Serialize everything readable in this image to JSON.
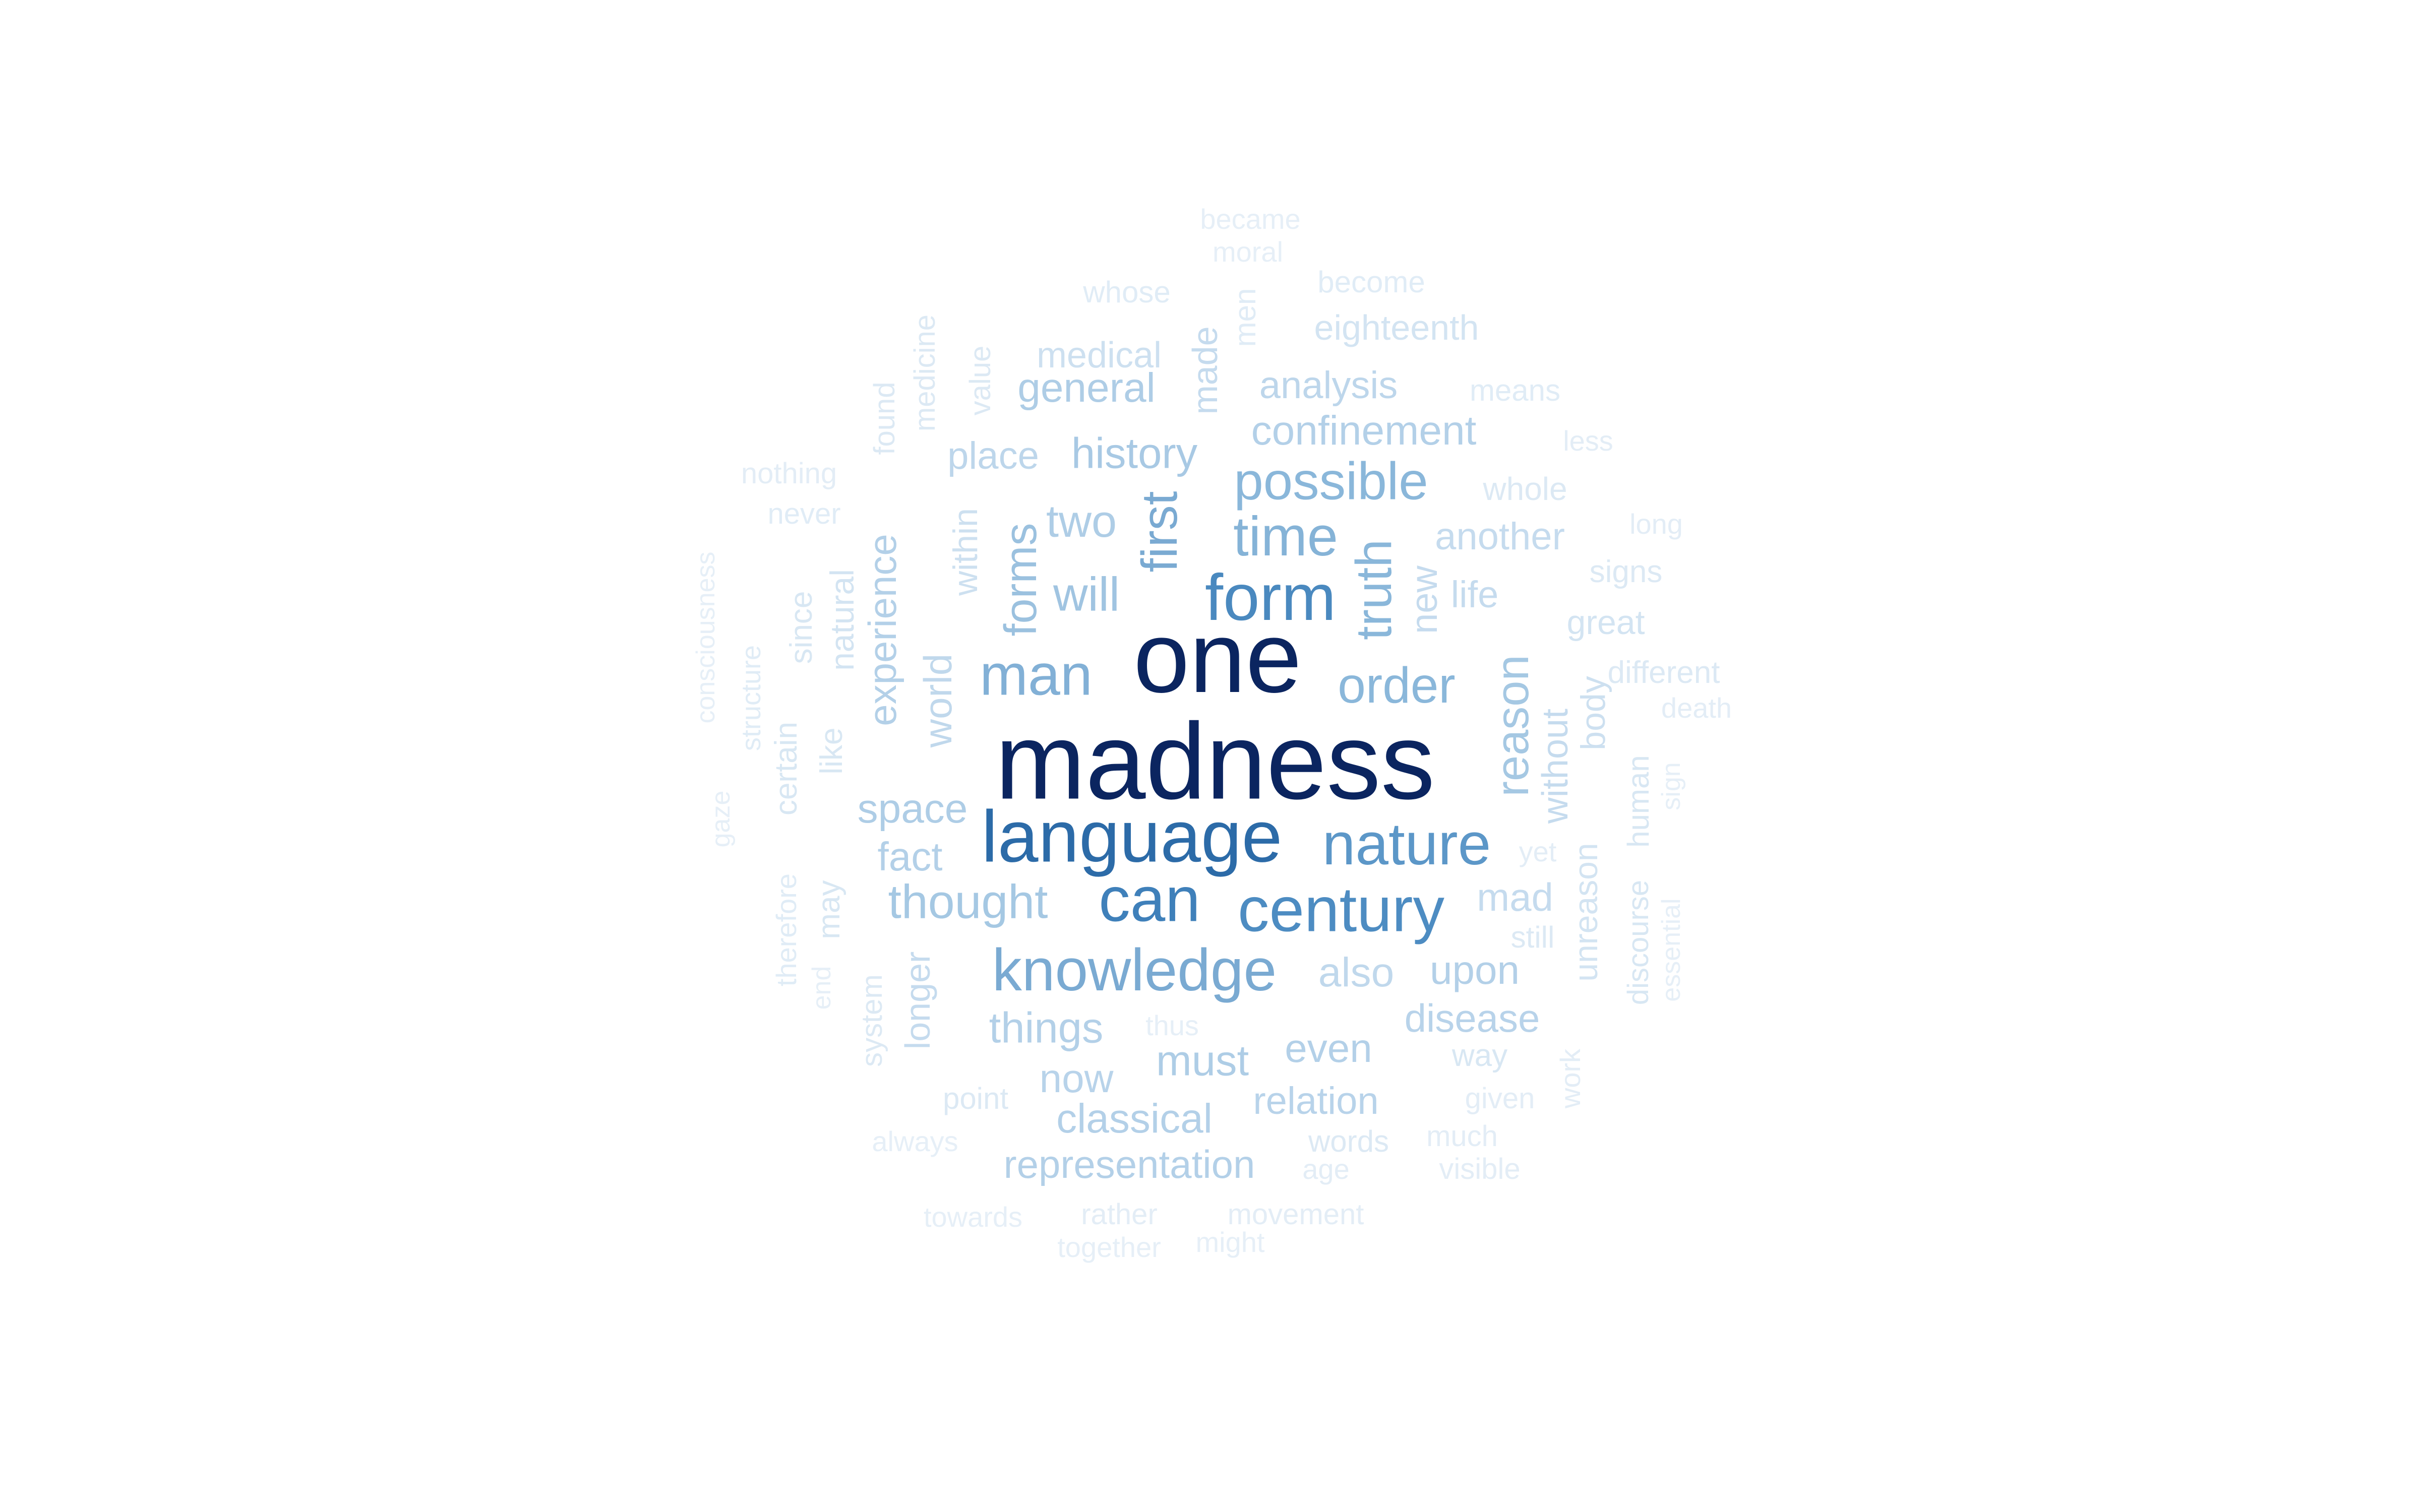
{
  "chart_data": {
    "type": "wordcloud",
    "palette": "blues",
    "background": "#ffffff",
    "words": [
      {
        "text": "madness",
        "weight": 100,
        "orientation": "horizontal"
      },
      {
        "text": "one",
        "weight": 100,
        "orientation": "horizontal"
      },
      {
        "text": "language",
        "weight": 80,
        "orientation": "horizontal"
      },
      {
        "text": "form",
        "weight": 72,
        "orientation": "horizontal"
      },
      {
        "text": "can",
        "weight": 72,
        "orientation": "horizontal"
      },
      {
        "text": "century",
        "weight": 70,
        "orientation": "horizontal"
      },
      {
        "text": "nature",
        "weight": 68,
        "orientation": "horizontal"
      },
      {
        "text": "knowledge",
        "weight": 62,
        "orientation": "horizontal"
      },
      {
        "text": "man",
        "weight": 62,
        "orientation": "horizontal"
      },
      {
        "text": "time",
        "weight": 60,
        "orientation": "horizontal"
      },
      {
        "text": "possible",
        "weight": 58,
        "orientation": "horizontal"
      },
      {
        "text": "order",
        "weight": 58,
        "orientation": "horizontal"
      },
      {
        "text": "truth",
        "weight": 56,
        "orientation": "vertical"
      },
      {
        "text": "first",
        "weight": 56,
        "orientation": "vertical"
      },
      {
        "text": "forms",
        "weight": 54,
        "orientation": "vertical"
      },
      {
        "text": "will",
        "weight": 54,
        "orientation": "horizontal"
      },
      {
        "text": "thought",
        "weight": 52,
        "orientation": "horizontal"
      },
      {
        "text": "reason",
        "weight": 50,
        "orientation": "vertical"
      },
      {
        "text": "two",
        "weight": 48,
        "orientation": "horizontal"
      },
      {
        "text": "history",
        "weight": 48,
        "orientation": "horizontal"
      },
      {
        "text": "general",
        "weight": 46,
        "orientation": "horizontal"
      },
      {
        "text": "space",
        "weight": 46,
        "orientation": "horizontal"
      },
      {
        "text": "things",
        "weight": 46,
        "orientation": "horizontal"
      },
      {
        "text": "fact",
        "weight": 44,
        "orientation": "horizontal"
      },
      {
        "text": "experience",
        "weight": 44,
        "orientation": "vertical"
      },
      {
        "text": "must",
        "weight": 44,
        "orientation": "horizontal"
      },
      {
        "text": "also",
        "weight": 44,
        "orientation": "horizontal"
      },
      {
        "text": "upon",
        "weight": 44,
        "orientation": "horizontal"
      },
      {
        "text": "even",
        "weight": 44,
        "orientation": "horizontal"
      },
      {
        "text": "disease",
        "weight": 42,
        "orientation": "horizontal"
      },
      {
        "text": "world",
        "weight": 42,
        "orientation": "vertical"
      },
      {
        "text": "confinement",
        "weight": 42,
        "orientation": "horizontal"
      },
      {
        "text": "classical",
        "weight": 42,
        "orientation": "horizontal"
      },
      {
        "text": "representation",
        "weight": 40,
        "orientation": "horizontal"
      },
      {
        "text": "relation",
        "weight": 40,
        "orientation": "horizontal"
      },
      {
        "text": "now",
        "weight": 40,
        "orientation": "horizontal"
      },
      {
        "text": "place",
        "weight": 40,
        "orientation": "horizontal"
      },
      {
        "text": "analysis",
        "weight": 40,
        "orientation": "horizontal"
      },
      {
        "text": "another",
        "weight": 40,
        "orientation": "horizontal"
      },
      {
        "text": "mad",
        "weight": 40,
        "orientation": "horizontal"
      },
      {
        "text": "life",
        "weight": 38,
        "orientation": "horizontal"
      },
      {
        "text": "new",
        "weight": 38,
        "orientation": "vertical"
      },
      {
        "text": "without",
        "weight": 38,
        "orientation": "vertical"
      },
      {
        "text": "made",
        "weight": 36,
        "orientation": "vertical"
      },
      {
        "text": "medical",
        "weight": 36,
        "orientation": "horizontal"
      },
      {
        "text": "within",
        "weight": 36,
        "orientation": "vertical"
      },
      {
        "text": "longer",
        "weight": 36,
        "orientation": "vertical"
      },
      {
        "text": "body",
        "weight": 36,
        "orientation": "vertical"
      },
      {
        "text": "unreason",
        "weight": 34,
        "orientation": "vertical"
      },
      {
        "text": "eighteenth",
        "weight": 34,
        "orientation": "horizontal"
      },
      {
        "text": "great",
        "weight": 34,
        "orientation": "horizontal"
      },
      {
        "text": "natural",
        "weight": 34,
        "orientation": "vertical"
      },
      {
        "text": "since",
        "weight": 32,
        "orientation": "vertical"
      },
      {
        "text": "certain",
        "weight": 32,
        "orientation": "vertical"
      },
      {
        "text": "like",
        "weight": 32,
        "orientation": "vertical"
      },
      {
        "text": "may",
        "weight": 32,
        "orientation": "vertical"
      },
      {
        "text": "way",
        "weight": 32,
        "orientation": "horizontal"
      },
      {
        "text": "human",
        "weight": 32,
        "orientation": "vertical"
      },
      {
        "text": "discourse",
        "weight": 32,
        "orientation": "vertical"
      },
      {
        "text": "whole",
        "weight": 32,
        "orientation": "horizontal"
      },
      {
        "text": "signs",
        "weight": 30,
        "orientation": "horizontal"
      },
      {
        "text": "different",
        "weight": 30,
        "orientation": "horizontal"
      },
      {
        "text": "point",
        "weight": 30,
        "orientation": "horizontal"
      },
      {
        "text": "system",
        "weight": 30,
        "orientation": "vertical"
      },
      {
        "text": "words",
        "weight": 30,
        "orientation": "horizontal"
      },
      {
        "text": "still",
        "weight": 30,
        "orientation": "horizontal"
      },
      {
        "text": "value",
        "weight": 30,
        "orientation": "vertical"
      },
      {
        "text": "medicine",
        "weight": 30,
        "orientation": "vertical"
      },
      {
        "text": "found",
        "weight": 30,
        "orientation": "vertical"
      },
      {
        "text": "means",
        "weight": 30,
        "orientation": "horizontal"
      },
      {
        "text": "become",
        "weight": 30,
        "orientation": "horizontal"
      },
      {
        "text": "whose",
        "weight": 30,
        "orientation": "horizontal"
      },
      {
        "text": "men",
        "weight": 30,
        "orientation": "vertical"
      },
      {
        "text": "therefore",
        "weight": 30,
        "orientation": "vertical"
      },
      {
        "text": "structure",
        "weight": 28,
        "orientation": "vertical"
      },
      {
        "text": "never",
        "weight": 28,
        "orientation": "horizontal"
      },
      {
        "text": "nothing",
        "weight": 28,
        "orientation": "horizontal"
      },
      {
        "text": "given",
        "weight": 28,
        "orientation": "horizontal"
      },
      {
        "text": "much",
        "weight": 28,
        "orientation": "horizontal"
      },
      {
        "text": "visible",
        "weight": 28,
        "orientation": "horizontal"
      },
      {
        "text": "age",
        "weight": 28,
        "orientation": "horizontal"
      },
      {
        "text": "rather",
        "weight": 28,
        "orientation": "horizontal"
      },
      {
        "text": "movement",
        "weight": 28,
        "orientation": "horizontal"
      },
      {
        "text": "long",
        "weight": 28,
        "orientation": "horizontal"
      },
      {
        "text": "less",
        "weight": 28,
        "orientation": "horizontal"
      },
      {
        "text": "death",
        "weight": 28,
        "orientation": "horizontal"
      },
      {
        "text": "yet",
        "weight": 28,
        "orientation": "horizontal"
      },
      {
        "text": "work",
        "weight": 28,
        "orientation": "vertical"
      },
      {
        "text": "sign",
        "weight": 26,
        "orientation": "vertical"
      },
      {
        "text": "essential",
        "weight": 26,
        "orientation": "vertical"
      },
      {
        "text": "thus",
        "weight": 26,
        "orientation": "horizontal"
      },
      {
        "text": "end",
        "weight": 26,
        "orientation": "vertical"
      },
      {
        "text": "consciousness",
        "weight": 26,
        "orientation": "vertical"
      },
      {
        "text": "gaze",
        "weight": 26,
        "orientation": "vertical"
      },
      {
        "text": "always",
        "weight": 26,
        "orientation": "horizontal"
      },
      {
        "text": "towards",
        "weight": 26,
        "orientation": "horizontal"
      },
      {
        "text": "together",
        "weight": 26,
        "orientation": "horizontal"
      },
      {
        "text": "might",
        "weight": 26,
        "orientation": "horizontal"
      },
      {
        "text": "became",
        "weight": 26,
        "orientation": "horizontal"
      },
      {
        "text": "moral",
        "weight": 26,
        "orientation": "horizontal"
      }
    ]
  }
}
